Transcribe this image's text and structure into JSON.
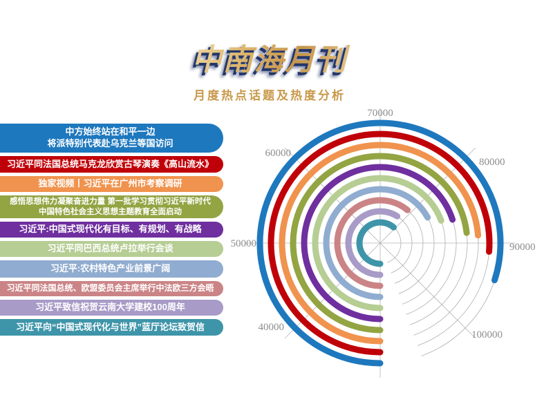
{
  "header": {
    "title": "中南海月刊",
    "subtitle": "月度热点话题及热度分析",
    "title_color": "#d9ae66",
    "title_shadow_color": "#24376b",
    "subtitle_color": "#c8994b"
  },
  "chart_data": {
    "type": "radial-bar",
    "title": "月度热点话题及热度分析",
    "angle_axis": {
      "min": 30000,
      "max": 110000,
      "tick_interval": 10000,
      "tick_labels": [
        "40000",
        "50000",
        "60000",
        "70000",
        "80000",
        "90000",
        "100000"
      ],
      "start_position": "bottom",
      "direction": "clockwise",
      "grid": true,
      "grid_color": "#adadad"
    },
    "legend_position": "left-list",
    "series": [
      {
        "name": "中方始终站在和平一边\n将派特别代表赴乌克兰等国访问",
        "value": 94000,
        "color": "#1e78be"
      },
      {
        "name": "习近平同法国总统马克龙欣赏古琴演奏《高山流水》",
        "value": 91000,
        "color": "#c00008"
      },
      {
        "name": "独家视频丨习近平在广州市考察调研",
        "value": 89000,
        "color": "#f0934e"
      },
      {
        "name": "感悟思想伟力凝聚奋进力量 第一批学习贯彻习近平新时代\n中国特色社会主义思想主题教育全面启动",
        "value": 88500,
        "color": "#93a443"
      },
      {
        "name": "习近平:中国式现代化有目标、有规划、有战略",
        "value": 86000,
        "color": "#6f2f9f"
      },
      {
        "name": "习近平同巴西总统卢拉举行会谈",
        "value": 85500,
        "color": "#b6cd94"
      },
      {
        "name": "习近平:农村特色产业前景广阔",
        "value": 83700,
        "color": "#90acd0"
      },
      {
        "name": "习近平同法国总统、欧盟委员会主席举行中法欧三方会晤",
        "value": 78800,
        "color": "#cb8486"
      },
      {
        "name": "习近平致信祝贺云南大学建校100周年",
        "value": 77200,
        "color": "#a89bc7"
      },
      {
        "name": "习近平向“中国式现代化与世界”蓝厅论坛致贺信",
        "value": 79000,
        "color": "#3e95a9"
      }
    ]
  }
}
